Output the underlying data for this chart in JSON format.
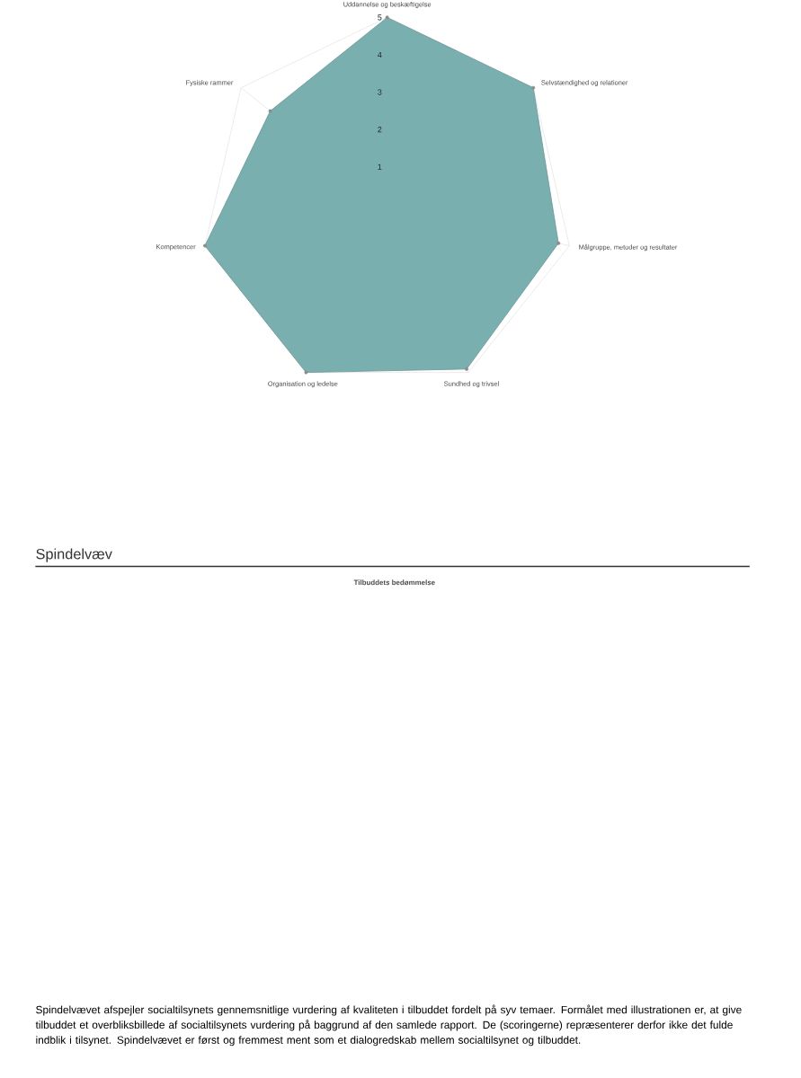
{
  "chart_data": {
    "type": "radar",
    "title": "Spindelvæv",
    "subtitle": "Tilbuddets bedømmelse",
    "categories": [
      "Uddannelse og beskæftigelse",
      "Selvstændighed og relationer",
      "Målgruppe, metoder og resultater",
      "Sundhed og trivsel",
      "Organisation og ledelse",
      "Kompetencer",
      "Fysiske rammer"
    ],
    "series": [
      {
        "color": "#7aafaf",
        "values": [
          5,
          5,
          4.7,
          4.9,
          5,
          5,
          4
        ]
      }
    ],
    "ylim": [
      0,
      5
    ],
    "yticks": [
      1,
      2,
      3,
      4,
      5
    ],
    "grid": true,
    "marker": "circle",
    "annotations": [
      "Spindelvævet afspejler socialtilsynets gennemsnitlige vurdering af kvaliteten i tilbuddet fordelt på syv temaer. Formålet med illustrationen er, at give tilbuddet et overbliksbillede af socialtilsynets vurdering på baggrund af den samlede rapport. De (scoringerne) repræsenterer derfor ikke det fulde indblik i tilsynet. Spindelvævet er først og fremmest ment som et dialogredskab mellem socialtilsynet og tilbuddet."
    ]
  }
}
